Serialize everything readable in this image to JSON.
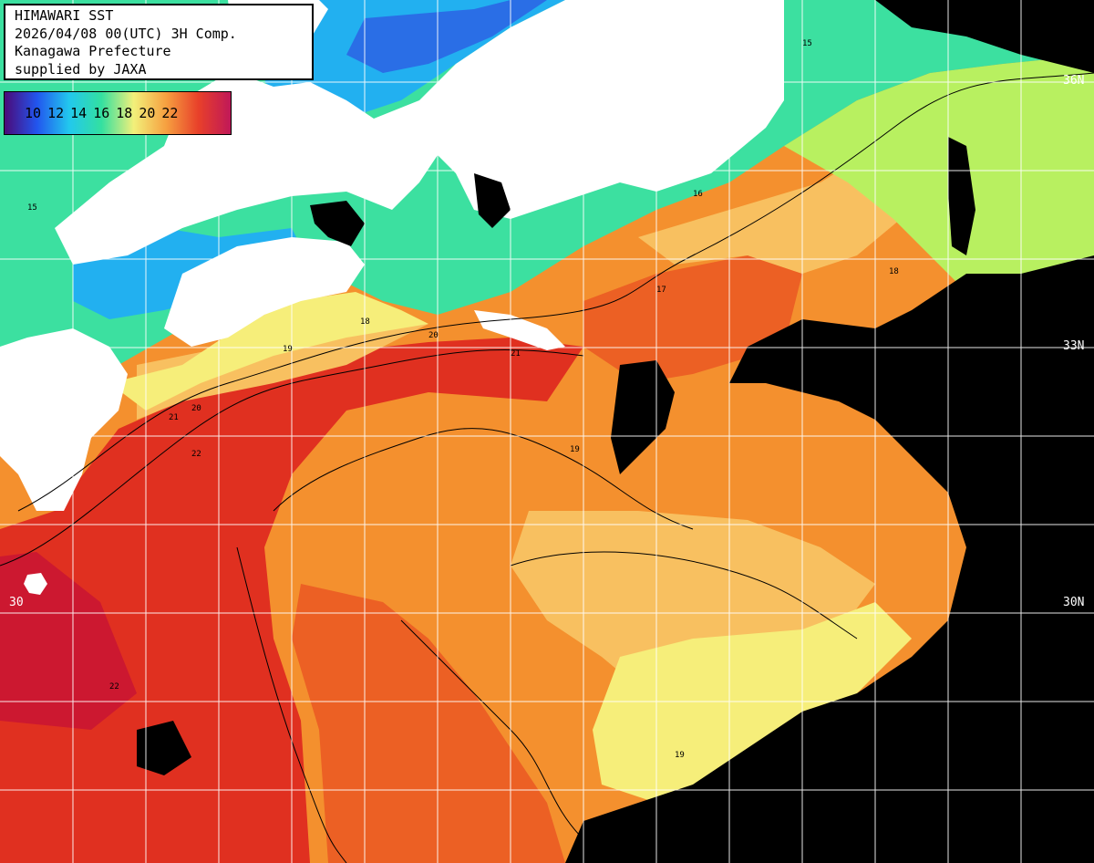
{
  "title_box": {
    "lines": [
      "HIMAWARI SST",
      "2026/04/08 00(UTC) 3H Comp.",
      "Kanagawa Prefecture",
      "supplied by JAXA"
    ]
  },
  "colorbar": {
    "ticks": [
      "10",
      "12",
      "14",
      "16",
      "18",
      "20",
      "22"
    ],
    "colors": [
      "#4b0a78",
      "#2255ee",
      "#22c8ee",
      "#33e0a0",
      "#f2f07a",
      "#f6a040",
      "#e8402a",
      "#c01858"
    ]
  },
  "grid_labels": {
    "lat_36": "36N",
    "lat_33": "33N",
    "lat_30_right": "30N",
    "lat_30_left": "30"
  },
  "contour_labels": [
    "15",
    "16",
    "17",
    "18",
    "19",
    "20",
    "21",
    "22"
  ],
  "palette": {
    "land": "#ffffff",
    "no_data": "#000000",
    "sst_14": "#22b0f0",
    "sst_15": "#3ce0a0",
    "sst_17": "#b8f060",
    "sst_18": "#f6ee7a",
    "sst_19": "#f8c060",
    "sst_20": "#f4902e",
    "sst_21": "#ec6024",
    "sst_22": "#e03020",
    "sst_23": "#cc1830",
    "grid": "#ffffff"
  }
}
